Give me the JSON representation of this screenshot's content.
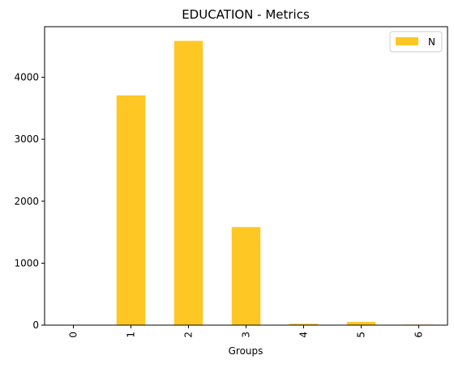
{
  "chart_data": {
    "type": "bar",
    "title": "EDUCATION - Metrics",
    "xlabel": "Groups",
    "ylabel": "",
    "categories": [
      "0",
      "1",
      "2",
      "3",
      "4",
      "5",
      "6"
    ],
    "series": [
      {
        "name": "N",
        "values": [
          0,
          3708,
          4588,
          1583,
          22,
          52,
          9
        ],
        "color": "#FFC724"
      }
    ],
    "ylim": [
      0,
      4817
    ],
    "yticks": [
      0,
      1000,
      2000,
      3000,
      4000
    ],
    "ytick_labels": [
      "0",
      "1000",
      "2000",
      "3000",
      "4000"
    ],
    "grid": false,
    "legend_position": "top-right"
  }
}
